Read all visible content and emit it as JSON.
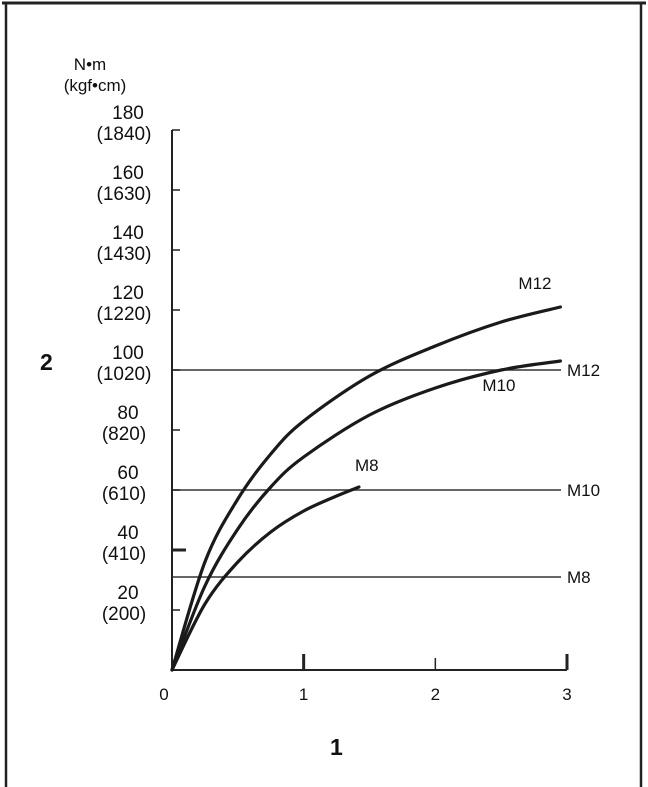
{
  "chart_data": {
    "type": "line",
    "y_unit_line1": "N•m",
    "y_unit_line2": "(kgf•cm)",
    "axis_markers": {
      "x": "1",
      "y": "2"
    },
    "x_ticks": [
      "0",
      "1",
      "2",
      "3"
    ],
    "xlim": [
      0,
      3
    ],
    "ylim": [
      0,
      180
    ],
    "y_ticks": [
      {
        "value": 20,
        "main": "20",
        "sub": "(200)"
      },
      {
        "value": 40,
        "main": "40",
        "sub": "(410)"
      },
      {
        "value": 60,
        "main": "60",
        "sub": "(610)"
      },
      {
        "value": 80,
        "main": "80",
        "sub": "(820)"
      },
      {
        "value": 100,
        "main": "100",
        "sub": "(1020)"
      },
      {
        "value": 120,
        "main": "120",
        "sub": "(1220)"
      },
      {
        "value": 140,
        "main": "140",
        "sub": "(1430)"
      },
      {
        "value": 160,
        "main": "160",
        "sub": "(1630)"
      },
      {
        "value": 180,
        "main": "180",
        "sub": "(1840)"
      }
    ],
    "series": [
      {
        "name": "M12",
        "x": [
          0,
          0.25,
          0.5,
          0.75,
          1.0,
          1.5,
          2.0,
          2.5,
          2.95
        ],
        "y": [
          0,
          36,
          57,
          72,
          83,
          98,
          108,
          116,
          121
        ]
      },
      {
        "name": "M10",
        "x": [
          0,
          0.25,
          0.5,
          0.75,
          1.0,
          1.5,
          2.0,
          2.5,
          2.95
        ],
        "y": [
          0,
          28,
          47,
          61,
          71,
          85,
          94,
          100,
          103
        ]
      },
      {
        "name": "M8",
        "x": [
          0,
          0.25,
          0.5,
          0.75,
          1.0,
          1.25,
          1.42
        ],
        "y": [
          0,
          22,
          36,
          46,
          53,
          58,
          61
        ]
      }
    ],
    "reference_lines": [
      {
        "name": "M12",
        "y": 100
      },
      {
        "name": "M10",
        "y": 60
      },
      {
        "name": "M8",
        "y": 31
      }
    ],
    "grid": false
  }
}
